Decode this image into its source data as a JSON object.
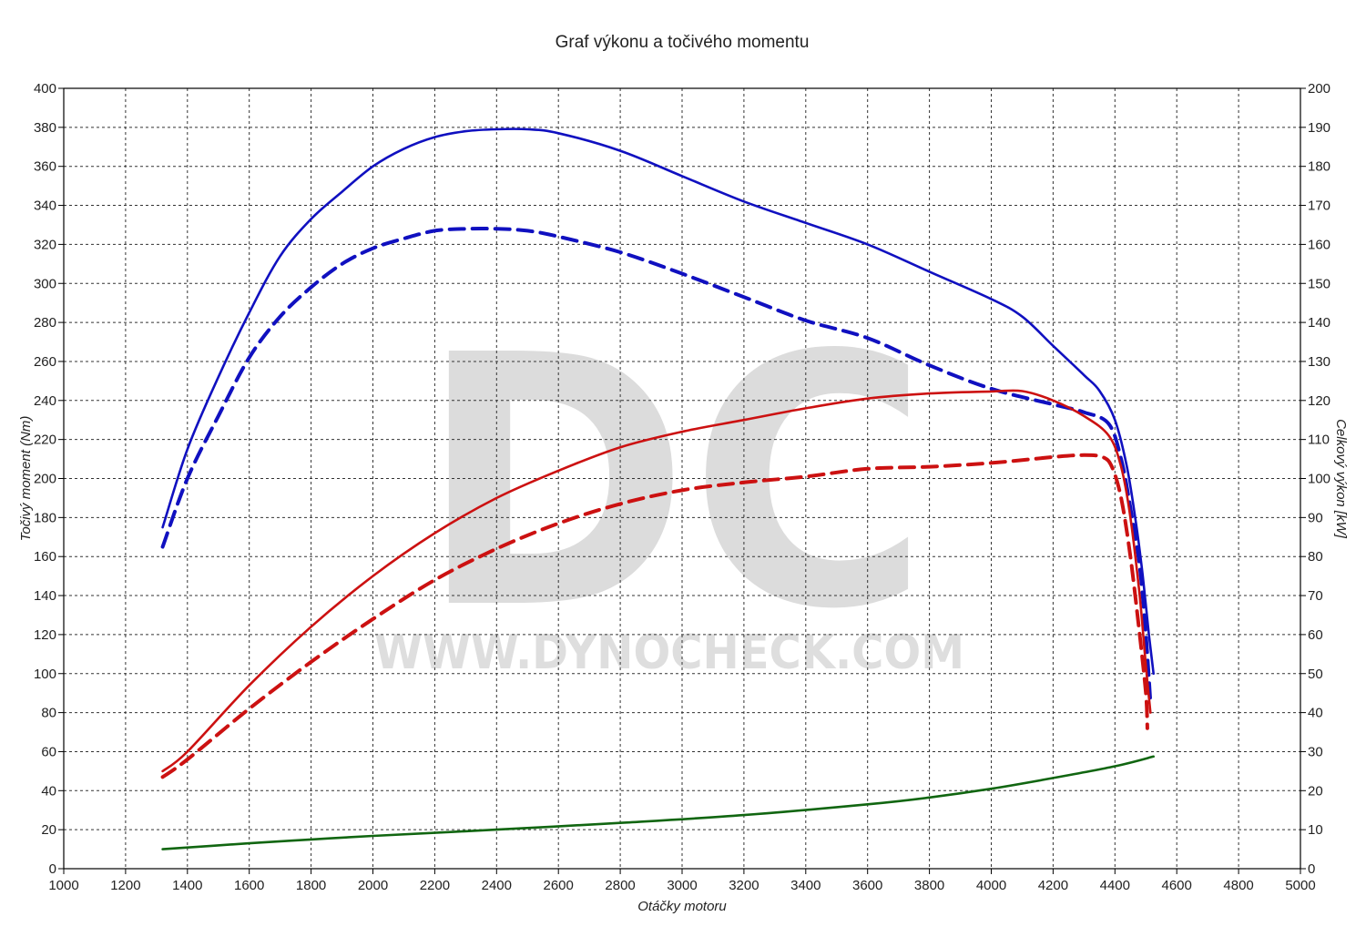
{
  "chart_data": {
    "type": "line",
    "title": "Graf výkonu a točivého momentu",
    "xlabel": "Otáčky motoru",
    "ylabel_left": "Točivý moment (Nm)",
    "ylabel_right": "Celkový výkon [kW]",
    "xlim": [
      1000,
      5000
    ],
    "ylim_left": [
      0,
      400
    ],
    "ylim_right": [
      0,
      200
    ],
    "x_ticks": [
      1000,
      1200,
      1400,
      1600,
      1800,
      2000,
      2200,
      2400,
      2600,
      2800,
      3000,
      3200,
      3400,
      3600,
      3800,
      4000,
      4200,
      4400,
      4600,
      4800,
      5000
    ],
    "y_ticks_left": [
      0,
      20,
      40,
      60,
      80,
      100,
      120,
      140,
      160,
      180,
      200,
      220,
      240,
      260,
      280,
      300,
      320,
      340,
      360,
      380,
      400
    ],
    "y_ticks_right": [
      0,
      10,
      20,
      30,
      40,
      50,
      60,
      70,
      80,
      90,
      100,
      110,
      120,
      130,
      140,
      150,
      160,
      170,
      180,
      190,
      200
    ],
    "grid": true,
    "watermark": {
      "letters": "DC",
      "url": "WWW.DYNOCHECK.COM"
    },
    "series": [
      {
        "axis": "left",
        "color": "#1010c0",
        "dashed": false,
        "points": [
          [
            1320,
            175
          ],
          [
            1400,
            215
          ],
          [
            1500,
            252
          ],
          [
            1600,
            285
          ],
          [
            1700,
            314
          ],
          [
            1800,
            333
          ],
          [
            1900,
            347
          ],
          [
            2000,
            360
          ],
          [
            2100,
            369
          ],
          [
            2200,
            375
          ],
          [
            2300,
            378
          ],
          [
            2400,
            379
          ],
          [
            2500,
            379
          ],
          [
            2600,
            377
          ],
          [
            2800,
            368
          ],
          [
            3000,
            355
          ],
          [
            3200,
            342
          ],
          [
            3400,
            331
          ],
          [
            3600,
            320
          ],
          [
            3800,
            306
          ],
          [
            4000,
            292
          ],
          [
            4100,
            283
          ],
          [
            4200,
            268
          ],
          [
            4300,
            253
          ],
          [
            4350,
            245
          ],
          [
            4400,
            230
          ],
          [
            4440,
            205
          ],
          [
            4470,
            175
          ],
          [
            4490,
            150
          ],
          [
            4510,
            120
          ],
          [
            4525,
            100
          ]
        ]
      },
      {
        "axis": "left",
        "color": "#1010c0",
        "dashed": true,
        "points": [
          [
            1320,
            165
          ],
          [
            1400,
            200
          ],
          [
            1500,
            232
          ],
          [
            1600,
            262
          ],
          [
            1700,
            283
          ],
          [
            1800,
            298
          ],
          [
            1900,
            310
          ],
          [
            2000,
            318
          ],
          [
            2100,
            323
          ],
          [
            2200,
            327
          ],
          [
            2300,
            328
          ],
          [
            2400,
            328
          ],
          [
            2500,
            327
          ],
          [
            2600,
            324
          ],
          [
            2800,
            316
          ],
          [
            3000,
            305
          ],
          [
            3200,
            293
          ],
          [
            3400,
            281
          ],
          [
            3600,
            272
          ],
          [
            3800,
            258
          ],
          [
            4000,
            246
          ],
          [
            4200,
            238
          ],
          [
            4300,
            234
          ],
          [
            4380,
            228
          ],
          [
            4420,
            210
          ],
          [
            4450,
            185
          ],
          [
            4480,
            155
          ],
          [
            4500,
            120
          ],
          [
            4515,
            85
          ]
        ]
      },
      {
        "axis": "right",
        "color": "#cc1111",
        "dashed": false,
        "points": [
          [
            1320,
            25
          ],
          [
            1400,
            30
          ],
          [
            1600,
            47
          ],
          [
            1800,
            62
          ],
          [
            2000,
            75
          ],
          [
            2200,
            86
          ],
          [
            2400,
            95
          ],
          [
            2600,
            102
          ],
          [
            2800,
            108
          ],
          [
            3000,
            112
          ],
          [
            3200,
            115
          ],
          [
            3400,
            118
          ],
          [
            3600,
            120.5
          ],
          [
            3800,
            121.8
          ],
          [
            4000,
            122.3
          ],
          [
            4100,
            122.4
          ],
          [
            4200,
            120
          ],
          [
            4300,
            116
          ],
          [
            4380,
            111
          ],
          [
            4420,
            103
          ],
          [
            4450,
            90
          ],
          [
            4480,
            70
          ],
          [
            4500,
            52
          ],
          [
            4515,
            40
          ]
        ]
      },
      {
        "axis": "right",
        "color": "#cc1111",
        "dashed": true,
        "points": [
          [
            1320,
            23.5
          ],
          [
            1400,
            28
          ],
          [
            1600,
            41
          ],
          [
            1800,
            53
          ],
          [
            2000,
            64
          ],
          [
            2200,
            74
          ],
          [
            2400,
            82
          ],
          [
            2600,
            88.5
          ],
          [
            2800,
            93.5
          ],
          [
            3000,
            97
          ],
          [
            3200,
            99
          ],
          [
            3400,
            100.5
          ],
          [
            3600,
            102.5
          ],
          [
            3800,
            103
          ],
          [
            4000,
            104
          ],
          [
            4200,
            105.5
          ],
          [
            4300,
            106
          ],
          [
            4360,
            105.5
          ],
          [
            4390,
            103
          ],
          [
            4420,
            95
          ],
          [
            4450,
            80
          ],
          [
            4480,
            60
          ],
          [
            4500,
            45
          ],
          [
            4505,
            36
          ]
        ]
      },
      {
        "axis": "left",
        "color": "#116611",
        "dashed": false,
        "points": [
          [
            1320,
            10
          ],
          [
            1600,
            13
          ],
          [
            1800,
            15
          ],
          [
            2000,
            16.8
          ],
          [
            2400,
            20
          ],
          [
            2800,
            23.5
          ],
          [
            3200,
            27.5
          ],
          [
            3600,
            33
          ],
          [
            3800,
            36.5
          ],
          [
            4000,
            41
          ],
          [
            4200,
            46.5
          ],
          [
            4400,
            52.5
          ],
          [
            4525,
            57.5
          ]
        ]
      }
    ]
  }
}
